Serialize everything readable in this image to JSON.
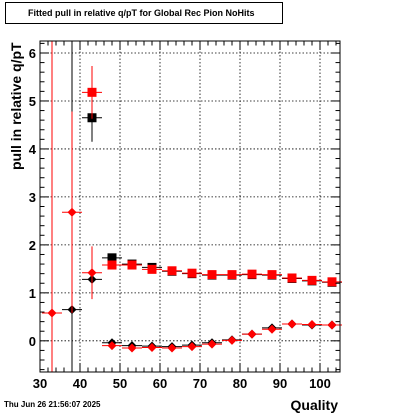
{
  "title": "Fitted pull in relative q/pT for Global Rec Pion NoHits",
  "timestamp": "Thu Jun 26 21:56:07 2025",
  "colors": {
    "series_black": "#000000",
    "series_red": "#ff0000",
    "grid": "#000000",
    "frame": "#000000"
  },
  "chart_data": [
    {
      "type": "scatter",
      "title": "Fitted pull in relative q/pT for Global Rec Pion NoHits",
      "xlabel": "Quality",
      "ylabel": "pull in relative q/pT",
      "xlim": [
        30,
        105
      ],
      "ylim": [
        -0.65,
        6.25
      ],
      "xticks": [
        "30",
        "40",
        "50",
        "60",
        "70",
        "80",
        "90",
        "100"
      ],
      "yticks": [
        "0",
        "1",
        "2",
        "3",
        "4",
        "5",
        "6"
      ],
      "grid": true,
      "series": [
        {
          "color": "#000000",
          "marker": "square",
          "points": [
            {
              "x": 43,
              "y": 4.65,
              "yerr": 0.5,
              "xerr": 2.5
            },
            {
              "x": 48,
              "y": 1.73,
              "yerr": 0.06,
              "xerr": 2.5
            },
            {
              "x": 53,
              "y": 1.6,
              "yerr": 0.05,
              "xerr": 2.5
            },
            {
              "x": 58,
              "y": 1.53,
              "yerr": 0.05,
              "xerr": 2.5
            },
            {
              "x": 63,
              "y": 1.45,
              "yerr": 0.04,
              "xerr": 2.5
            },
            {
              "x": 68,
              "y": 1.4,
              "yerr": 0.04,
              "xerr": 2.5
            },
            {
              "x": 73,
              "y": 1.37,
              "yerr": 0.04,
              "xerr": 2.5
            },
            {
              "x": 78,
              "y": 1.37,
              "yerr": 0.04,
              "xerr": 2.5
            },
            {
              "x": 83,
              "y": 1.38,
              "yerr": 0.04,
              "xerr": 2.5
            },
            {
              "x": 88,
              "y": 1.37,
              "yerr": 0.04,
              "xerr": 2.5
            },
            {
              "x": 93,
              "y": 1.3,
              "yerr": 0.04,
              "xerr": 2.5
            },
            {
              "x": 98,
              "y": 1.25,
              "yerr": 0.04,
              "xerr": 2.5
            },
            {
              "x": 103,
              "y": 1.22,
              "yerr": 0.04,
              "xerr": 2.5
            }
          ]
        },
        {
          "color": "#ff0000",
          "marker": "square",
          "points": [
            {
              "x": 43,
              "y": 5.18,
              "yerr": 0.55,
              "xerr": 2.5
            },
            {
              "x": 48,
              "y": 1.58,
              "yerr": 0.06,
              "xerr": 2.5
            },
            {
              "x": 53,
              "y": 1.58,
              "yerr": 0.05,
              "xerr": 2.5
            },
            {
              "x": 58,
              "y": 1.49,
              "yerr": 0.05,
              "xerr": 2.5
            },
            {
              "x": 63,
              "y": 1.46,
              "yerr": 0.04,
              "xerr": 2.5
            },
            {
              "x": 68,
              "y": 1.41,
              "yerr": 0.04,
              "xerr": 2.5
            },
            {
              "x": 73,
              "y": 1.38,
              "yerr": 0.04,
              "xerr": 2.5
            },
            {
              "x": 78,
              "y": 1.38,
              "yerr": 0.04,
              "xerr": 2.5
            },
            {
              "x": 83,
              "y": 1.39,
              "yerr": 0.04,
              "xerr": 2.5
            },
            {
              "x": 88,
              "y": 1.38,
              "yerr": 0.04,
              "xerr": 2.5
            },
            {
              "x": 93,
              "y": 1.31,
              "yerr": 0.04,
              "xerr": 2.5
            },
            {
              "x": 98,
              "y": 1.26,
              "yerr": 0.04,
              "xerr": 2.5
            },
            {
              "x": 103,
              "y": 1.23,
              "yerr": 0.04,
              "xerr": 2.5
            }
          ]
        },
        {
          "color": "#000000",
          "marker": "diamond",
          "points": [
            {
              "x": 38,
              "y": 0.65,
              "yerr": 6.0,
              "xerr": 2.5
            },
            {
              "x": 43,
              "y": 1.28,
              "yerr": 0.2,
              "xerr": 2.5
            },
            {
              "x": 48,
              "y": -0.04,
              "yerr": 0.05,
              "xerr": 2.5
            },
            {
              "x": 53,
              "y": -0.1,
              "yerr": 0.04,
              "xerr": 2.5
            },
            {
              "x": 58,
              "y": -0.11,
              "yerr": 0.04,
              "xerr": 2.5
            },
            {
              "x": 63,
              "y": -0.12,
              "yerr": 0.04,
              "xerr": 2.5
            },
            {
              "x": 68,
              "y": -0.09,
              "yerr": 0.04,
              "xerr": 2.5
            },
            {
              "x": 73,
              "y": -0.04,
              "yerr": 0.04,
              "xerr": 2.5
            },
            {
              "x": 78,
              "y": 0.02,
              "yerr": 0.04,
              "xerr": 2.5
            },
            {
              "x": 83,
              "y": 0.14,
              "yerr": 0.04,
              "xerr": 2.5
            },
            {
              "x": 88,
              "y": 0.27,
              "yerr": 0.04,
              "xerr": 2.5
            },
            {
              "x": 93,
              "y": 0.35,
              "yerr": 0.04,
              "xerr": 2.5
            },
            {
              "x": 98,
              "y": 0.33,
              "yerr": 0.04,
              "xerr": 2.5
            },
            {
              "x": 103,
              "y": 0.33,
              "yerr": 0.04,
              "xerr": 2.5
            }
          ]
        },
        {
          "color": "#ff0000",
          "marker": "diamond",
          "points": [
            {
              "x": 33,
              "y": 0.58,
              "yerr": 6.0,
              "xerr": 2.5
            },
            {
              "x": 38,
              "y": 2.68,
              "yerr": 2.1,
              "xerr": 2.5
            },
            {
              "x": 43,
              "y": 1.42,
              "yerr": 0.55,
              "xerr": 2.5
            },
            {
              "x": 48,
              "y": -0.1,
              "yerr": 0.05,
              "xerr": 2.5
            },
            {
              "x": 53,
              "y": -0.15,
              "yerr": 0.04,
              "xerr": 2.5
            },
            {
              "x": 58,
              "y": -0.14,
              "yerr": 0.04,
              "xerr": 2.5
            },
            {
              "x": 63,
              "y": -0.15,
              "yerr": 0.04,
              "xerr": 2.5
            },
            {
              "x": 68,
              "y": -0.12,
              "yerr": 0.04,
              "xerr": 2.5
            },
            {
              "x": 73,
              "y": -0.07,
              "yerr": 0.04,
              "xerr": 2.5
            },
            {
              "x": 78,
              "y": 0.01,
              "yerr": 0.04,
              "xerr": 2.5
            },
            {
              "x": 83,
              "y": 0.14,
              "yerr": 0.04,
              "xerr": 2.5
            },
            {
              "x": 88,
              "y": 0.24,
              "yerr": 0.04,
              "xerr": 2.5
            },
            {
              "x": 93,
              "y": 0.35,
              "yerr": 0.04,
              "xerr": 2.5
            },
            {
              "x": 98,
              "y": 0.34,
              "yerr": 0.04,
              "xerr": 2.5
            },
            {
              "x": 103,
              "y": 0.33,
              "yerr": 0.04,
              "xerr": 2.5
            }
          ]
        }
      ]
    }
  ]
}
